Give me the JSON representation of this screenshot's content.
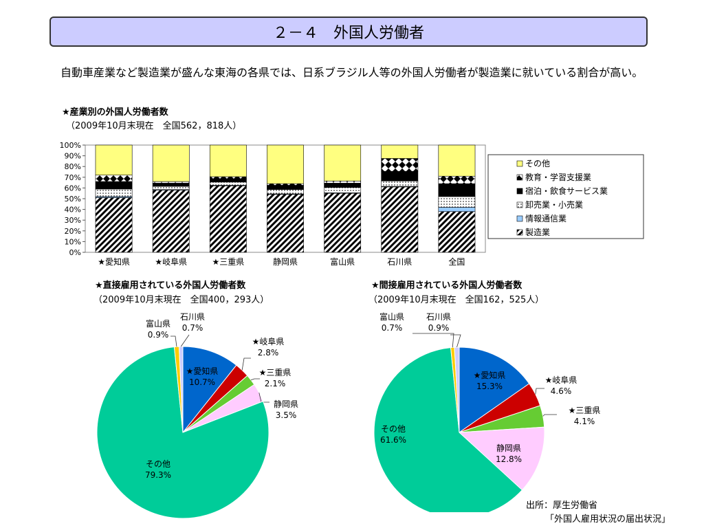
{
  "title": "２－４　外国人労働者",
  "intro": "自動車産業など製造業が盛んな東海の各県では、日系ブラジル人等の外国人労働者が製造業に就いている割合が高い。",
  "source_line1": "出所：厚生労働省",
  "source_line2": "「外国人雇用状況の届出状況」",
  "chart_data": [
    {
      "type": "bar",
      "stacked": true,
      "title": "★産業別の外国人労働者数",
      "subtitle": "（2009年10月末現在　全国562，818人）",
      "categories": [
        "★愛知県",
        "★岐阜県",
        "★三重県",
        "静岡県",
        "富山県",
        "石川県",
        "全国"
      ],
      "series": [
        {
          "name": "製造業",
          "values": [
            51,
            58,
            62,
            54,
            55,
            61,
            38
          ],
          "color": "#ffffff",
          "pattern": "diagonal"
        },
        {
          "name": "情報通信業",
          "values": [
            1,
            0.5,
            0.5,
            0.5,
            0.5,
            0.5,
            4
          ],
          "color": "#99ccff",
          "pattern": "none"
        },
        {
          "name": "卸売業・小売業",
          "values": [
            7,
            3,
            3,
            4,
            5,
            5,
            10
          ],
          "color": "#ffffff",
          "pattern": "dots"
        },
        {
          "name": "宿泊・飲食サービス業",
          "values": [
            7,
            3,
            3,
            4,
            4,
            9,
            12
          ],
          "color": "#000000",
          "pattern": "none"
        },
        {
          "name": "教育・学習支援業",
          "values": [
            6,
            1.5,
            2,
            1.5,
            2,
            12,
            7
          ],
          "color": "#ffffff",
          "pattern": "diamond"
        },
        {
          "name": "その他",
          "values": [
            28,
            34,
            29.5,
            36,
            33.5,
            12.5,
            29
          ],
          "color": "#ffff80",
          "pattern": "none"
        }
      ],
      "y_ticks": [
        "0%",
        "10%",
        "20%",
        "30%",
        "40%",
        "50%",
        "60%",
        "70%",
        "80%",
        "90%",
        "100%"
      ],
      "ylim": [
        0,
        100
      ],
      "legend_position": "right"
    },
    {
      "type": "pie",
      "title": "★直接雇用されている外国人労働者数",
      "subtitle": "（2009年10月末現在　全国400，293人）",
      "slices": [
        {
          "label": "★愛知県",
          "value": 10.7,
          "text": "10.7%",
          "color": "#0066cc"
        },
        {
          "label": "★岐阜県",
          "value": 2.8,
          "text": "2.8%",
          "color": "#cc0000"
        },
        {
          "label": "★三重県",
          "value": 2.1,
          "text": "2.1%",
          "color": "#66cc33"
        },
        {
          "label": "静岡県",
          "value": 3.5,
          "text": "3.5%",
          "color": "#ffccff"
        },
        {
          "label": "その他",
          "value": 79.3,
          "text": "79.3%",
          "color": "#00cc99"
        },
        {
          "label": "富山県",
          "value": 0.9,
          "text": "0.9%",
          "color": "#ffcc00"
        },
        {
          "label": "石川県",
          "value": 0.7,
          "text": "0.7%",
          "color": "#ccccff"
        }
      ]
    },
    {
      "type": "pie",
      "title": "★間接雇用されている外国人労働者数",
      "subtitle": "（2009年10月末現在　全国162，525人）",
      "slices": [
        {
          "label": "★愛知県",
          "value": 15.3,
          "text": "15.3%",
          "color": "#0066cc"
        },
        {
          "label": "★岐阜県",
          "value": 4.6,
          "text": "4.6%",
          "color": "#cc0000"
        },
        {
          "label": "★三重県",
          "value": 4.1,
          "text": "4.1%",
          "color": "#66cc33"
        },
        {
          "label": "静岡県",
          "value": 12.8,
          "text": "12.8%",
          "color": "#ffccff"
        },
        {
          "label": "その他",
          "value": 61.6,
          "text": "61.6%",
          "color": "#00cc99"
        },
        {
          "label": "富山県",
          "value": 0.7,
          "text": "0.7%",
          "color": "#ffcc00"
        },
        {
          "label": "石川県",
          "value": 0.9,
          "text": "0.9%",
          "color": "#ccccff"
        }
      ]
    }
  ]
}
